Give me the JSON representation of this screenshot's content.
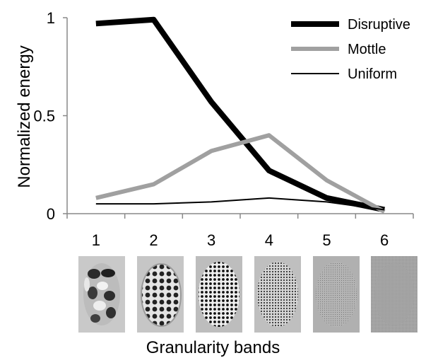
{
  "chart_data": {
    "type": "line",
    "x": [
      1,
      2,
      3,
      4,
      5,
      6
    ],
    "xlim": [
      0.5,
      6.5
    ],
    "ylim": [
      0,
      1
    ],
    "xlabel": "Granularity bands",
    "ylabel": "Normalized energy",
    "y_ticks": [
      "0",
      "0.5",
      "1"
    ],
    "x_ticks": [
      "1",
      "2",
      "3",
      "4",
      "5",
      "6"
    ],
    "legend_position": "top-right",
    "series": [
      {
        "name": "Disruptive",
        "values": [
          0.97,
          0.99,
          0.57,
          0.22,
          0.08,
          0.02
        ],
        "color": "#000000",
        "width": 8
      },
      {
        "name": "Mottle",
        "values": [
          0.08,
          0.15,
          0.32,
          0.4,
          0.17,
          0.01
        ],
        "color": "#a0a0a0",
        "width": 6
      },
      {
        "name": "Uniform",
        "values": [
          0.05,
          0.05,
          0.06,
          0.08,
          0.06,
          0.02
        ],
        "color": "#000000",
        "width": 2
      }
    ]
  }
}
